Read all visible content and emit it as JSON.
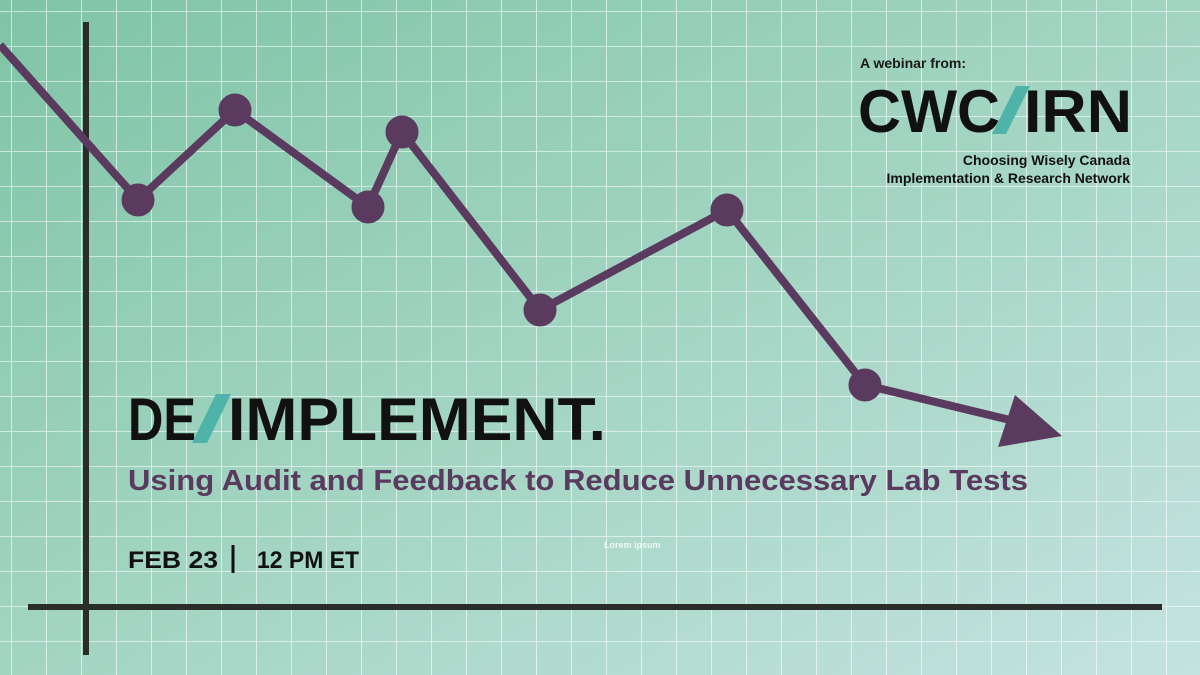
{
  "header": {
    "label": "A webinar from:",
    "logo": {
      "left": "CWC",
      "right": "IRN"
    },
    "org_lines": [
      "Choosing Wisely Canada",
      "Implementation & Research Network"
    ]
  },
  "title": {
    "left": "DE",
    "right": "IMPLEMENT."
  },
  "subtitle": "Using Audit and Feedback to Reduce Unnecessary Lab Tests",
  "event": {
    "date": "FEB 23",
    "time": "12 PM ET"
  },
  "placeholder": "Lorem ipsum"
}
